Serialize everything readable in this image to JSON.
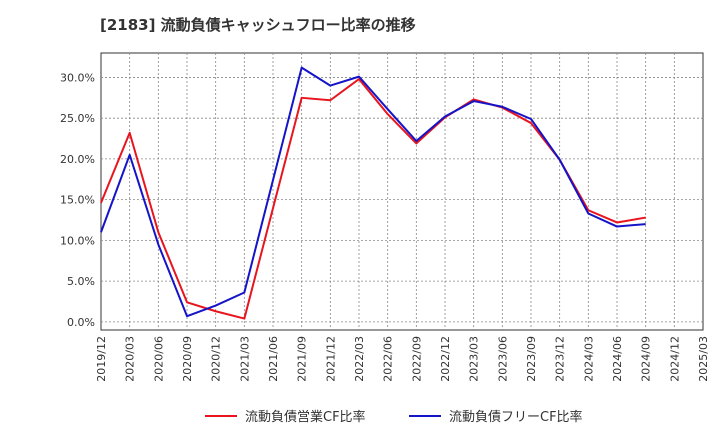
{
  "chart_data": {
    "type": "line",
    "title": "[2183]  流動負債キャッシュフロー比率の推移",
    "xlabel": "",
    "ylabel": "",
    "ylim": [
      -1,
      33
    ],
    "yticks": [
      0,
      5,
      10,
      15,
      20,
      25,
      30
    ],
    "ytick_labels": [
      "0.0%",
      "5.0%",
      "10.0%",
      "15.0%",
      "20.0%",
      "25.0%",
      "30.0%"
    ],
    "x": [
      "2019/12",
      "2020/03",
      "2020/06",
      "2020/09",
      "2020/12",
      "2021/03",
      "2021/06",
      "2021/09",
      "2021/12",
      "2022/03",
      "2022/06",
      "2022/09",
      "2022/12",
      "2023/03",
      "2023/06",
      "2023/09",
      "2023/12",
      "2024/03",
      "2024/06",
      "2024/09",
      "2024/12",
      "2025/03"
    ],
    "grid": true,
    "legend_position": "bottom",
    "series": [
      {
        "name": "流動負債営業CF比率",
        "color": "#e8141e",
        "values": [
          14.6,
          23.2,
          11.0,
          2.4,
          1.3,
          0.4,
          null,
          27.5,
          27.2,
          29.8,
          25.5,
          21.9,
          25.1,
          27.3,
          26.3,
          24.4,
          19.9,
          13.7,
          12.2,
          12.8,
          null,
          null
        ]
      },
      {
        "name": "流動負債フリーCF比率",
        "color": "#1414c8",
        "values": [
          11.0,
          20.5,
          9.5,
          0.7,
          2.0,
          3.6,
          null,
          31.2,
          29.0,
          30.1,
          26.1,
          22.2,
          25.2,
          27.1,
          26.4,
          24.9,
          19.9,
          13.3,
          11.7,
          12.0,
          null,
          null
        ]
      }
    ]
  }
}
